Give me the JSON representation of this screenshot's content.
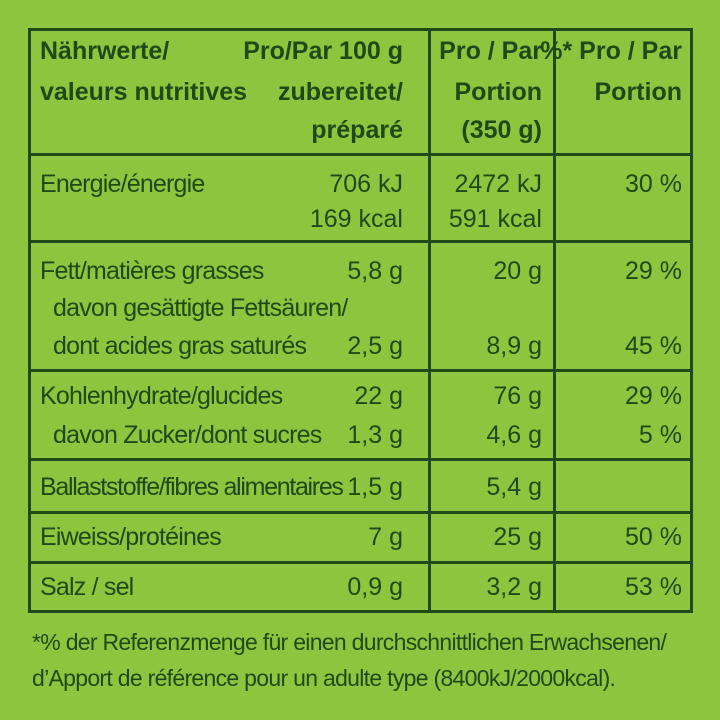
{
  "header": {
    "name_line1": "Nährwerte/",
    "name_line2": "valeurs nutritives",
    "col1_line1": "Pro/Par 100 g",
    "col1_line2": "zubereitet/",
    "col1_line3": "préparé",
    "col2_line1": "Pro / Par",
    "col2_line2": "Portion",
    "col2_line3": "(350 g)",
    "col3_line1": "%* Pro / Par",
    "col3_line2": "Portion"
  },
  "rows": {
    "energy": {
      "label": "Energie/énergie",
      "per100_kj": "706 kJ",
      "per100_kcal": "169 kcal",
      "portion_kj": "2472 kJ",
      "portion_kcal": "591 kcal",
      "pct": "30 %"
    },
    "fat": {
      "label": "Fett/matières grasses",
      "per100": "5,8 g",
      "portion": "20 g",
      "pct": "29 %",
      "sat_label_1": "davon gesättigte Fettsäuren/",
      "sat_label_2": "dont acides gras saturés",
      "sat_per100": "2,5 g",
      "sat_portion": "8,9 g",
      "sat_pct": "45 %"
    },
    "carbs": {
      "label": "Kohlenhydrate/glucides",
      "per100": "22 g",
      "portion": "76 g",
      "pct": "29 %",
      "sugar_label": "davon Zucker/dont sucres",
      "sugar_per100": "1,3 g",
      "sugar_portion": "4,6 g",
      "sugar_pct": "5 %"
    },
    "fibre": {
      "label": "Ballaststoffe/fibres alimentaires",
      "per100": "1,5 g",
      "portion": "5,4 g"
    },
    "protein": {
      "label": "Eiweiss/protéines",
      "per100": "7 g",
      "portion": "25 g",
      "pct": "50 %"
    },
    "salt": {
      "label": "Salz / sel",
      "per100": "0,9 g",
      "portion": "3,2 g",
      "pct": "53 %"
    }
  },
  "footnote": {
    "line1": "*% der Referenzmenge für einen durchschnittlichen Erwachsenen/",
    "line2": "d’Apport de référence pour un adulte type (8400kJ/2000kcal)."
  },
  "colors": {
    "background": "#8cc63f",
    "ink": "#1f4a17"
  }
}
